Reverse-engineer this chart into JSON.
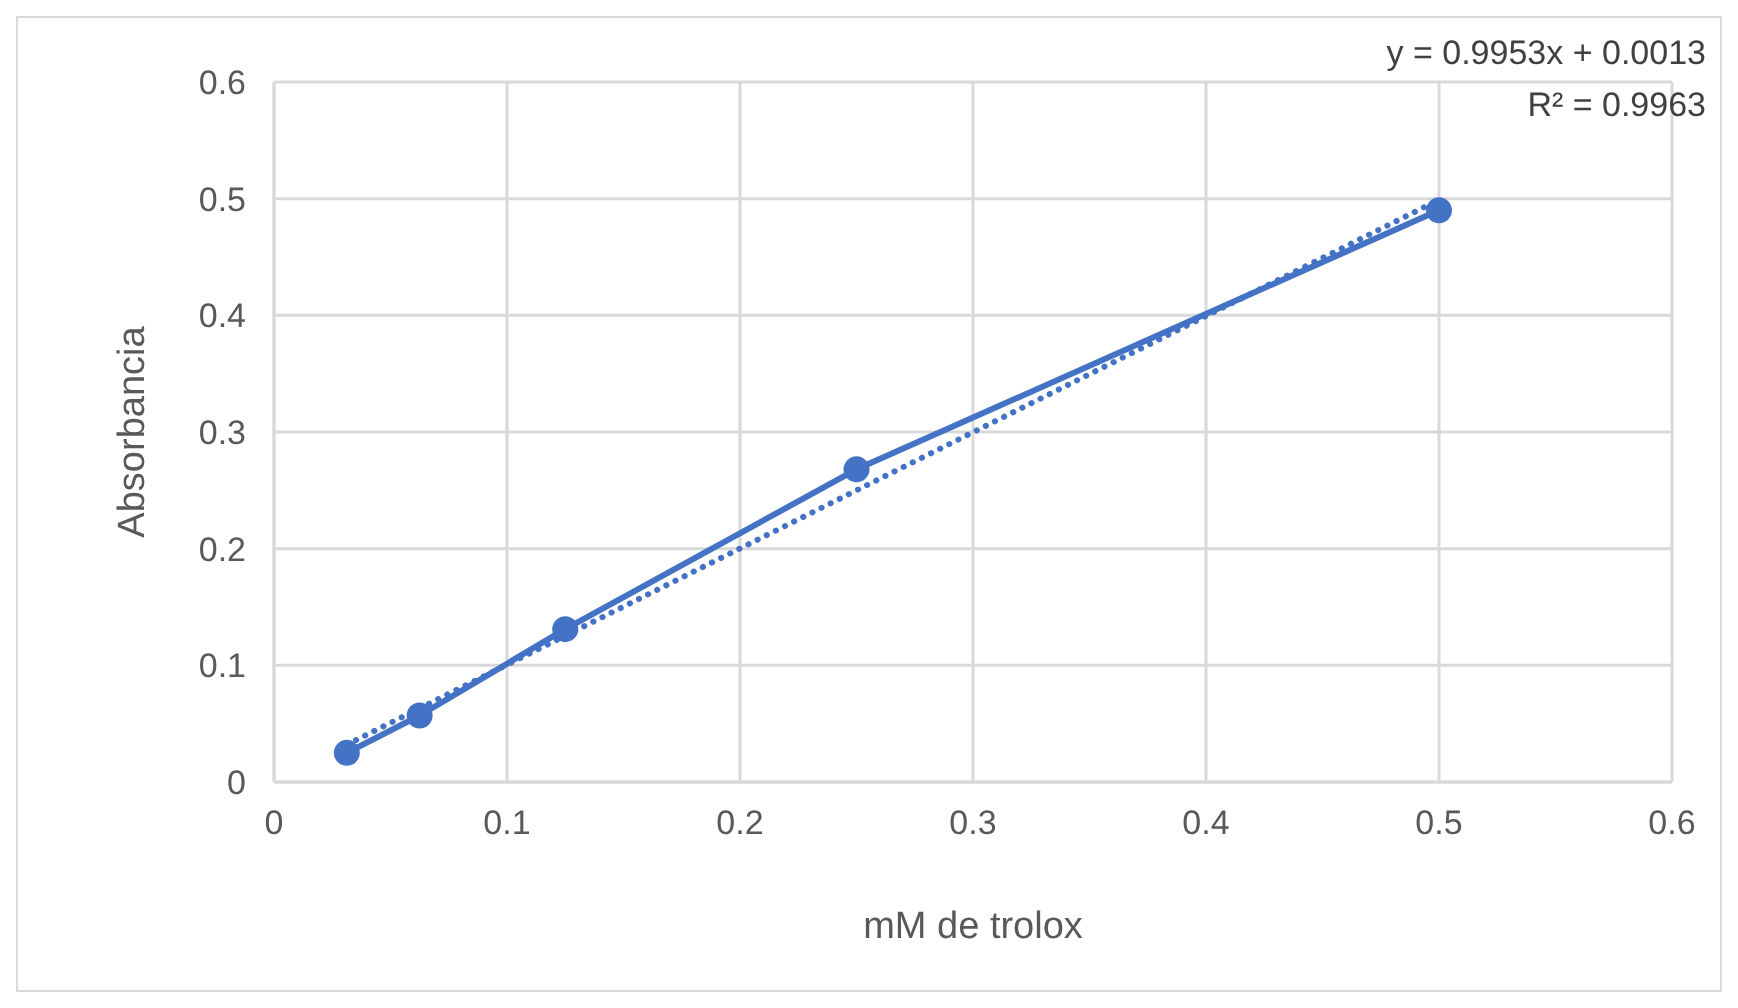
{
  "chart_data": {
    "type": "line",
    "xlabel": "mM de trolox",
    "ylabel": "Absorbancia",
    "xlim": [
      0,
      0.6
    ],
    "xticks": [
      0,
      0.1,
      0.2,
      0.3,
      0.4,
      0.5,
      0.6
    ],
    "ylim": [
      0,
      0.6
    ],
    "yticks": [
      0,
      0.1,
      0.2,
      0.3,
      0.4,
      0.5,
      0.6
    ],
    "grid": true,
    "series": [
      {
        "color": "#4472c4",
        "marker": "circle",
        "line_style": "solid",
        "x": [
          0.03125,
          0.0625,
          0.125,
          0.25,
          0.5
        ],
        "values": [
          0.025,
          0.057,
          0.131,
          0.268,
          0.49
        ]
      },
      {
        "color": "#4472c4",
        "marker": "none",
        "line_style": "dotted",
        "x": [
          0.03125,
          0.5
        ],
        "values": [
          0.032,
          0.499
        ]
      }
    ],
    "annotations": [
      "y = 0.9953x + 0.0013",
      "R² = 0.9963"
    ]
  }
}
